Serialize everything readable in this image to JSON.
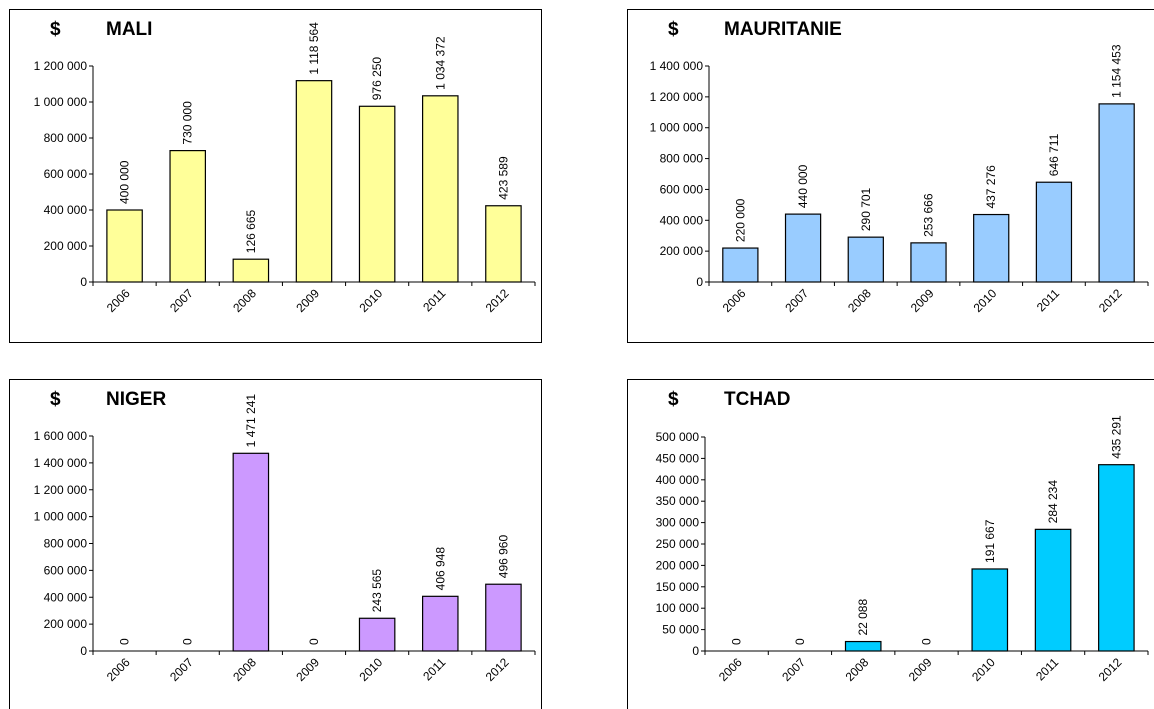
{
  "chart_data": [
    {
      "type": "bar",
      "title": "MALI",
      "unit": "$",
      "categories": [
        "2006",
        "2007",
        "2008",
        "2009",
        "2010",
        "2011",
        "2012"
      ],
      "values": [
        400000,
        730000,
        126665,
        1118564,
        976250,
        1034372,
        423589
      ],
      "value_labels": [
        "400 000",
        "730 000",
        "126 665",
        "1 118 564",
        "976 250",
        "1 034 372",
        "423 589"
      ],
      "ylim": [
        0,
        1200000
      ],
      "yticks": [
        0,
        200000,
        400000,
        600000,
        800000,
        1000000,
        1200000
      ],
      "ytick_labels": [
        "0",
        "200 000",
        "400 000",
        "600 000",
        "800 000",
        "1 000 000",
        "1 200 000"
      ],
      "bar_color": "#FFFF99",
      "grid": false,
      "legend": "none"
    },
    {
      "type": "bar",
      "title": "MAURITANIE",
      "unit": "$",
      "categories": [
        "2006",
        "2007",
        "2008",
        "2009",
        "2010",
        "2011",
        "2012"
      ],
      "values": [
        220000,
        440000,
        290701,
        253666,
        437276,
        646711,
        1154453
      ],
      "value_labels": [
        "220 000",
        "440 000",
        "290 701",
        "253 666",
        "437 276",
        "646 711",
        "1 154 453"
      ],
      "ylim": [
        0,
        1400000
      ],
      "yticks": [
        0,
        200000,
        400000,
        600000,
        800000,
        1000000,
        1200000,
        1400000
      ],
      "ytick_labels": [
        "0",
        "200 000",
        "400 000",
        "600 000",
        "800 000",
        "1 000 000",
        "1 200 000",
        "1 400 000"
      ],
      "bar_color": "#99CCFF",
      "grid": false,
      "legend": "none"
    },
    {
      "type": "bar",
      "title": "NIGER",
      "unit": "$",
      "categories": [
        "2006",
        "2007",
        "2008",
        "2009",
        "2010",
        "2011",
        "2012"
      ],
      "values": [
        0,
        0,
        1471241,
        0,
        243565,
        406948,
        496960
      ],
      "value_labels": [
        "0",
        "0",
        "1 471 241",
        "0",
        "243 565",
        "406 948",
        "496 960"
      ],
      "ylim": [
        0,
        1600000
      ],
      "yticks": [
        0,
        200000,
        400000,
        600000,
        800000,
        1000000,
        1200000,
        1400000,
        1600000
      ],
      "ytick_labels": [
        "0",
        "200 000",
        "400 000",
        "600 000",
        "800 000",
        "1 000 000",
        "1 200 000",
        "1 400 000",
        "1 600 000"
      ],
      "bar_color": "#CC99FF",
      "grid": false,
      "legend": "none"
    },
    {
      "type": "bar",
      "title": "TCHAD",
      "unit": "$",
      "categories": [
        "2006",
        "2007",
        "2008",
        "2009",
        "2010",
        "2011",
        "2012"
      ],
      "values": [
        0,
        0,
        22088,
        0,
        191667,
        284234,
        435291
      ],
      "value_labels": [
        "0",
        "0",
        "22 088",
        "0",
        "191 667",
        "284 234",
        "435 291"
      ],
      "ylim": [
        0,
        500000
      ],
      "yticks": [
        0,
        50000,
        100000,
        150000,
        200000,
        250000,
        300000,
        350000,
        400000,
        450000,
        500000
      ],
      "ytick_labels": [
        "0",
        "50 000",
        "100 000",
        "150 000",
        "200 000",
        "250 000",
        "300 000",
        "350 000",
        "400 000",
        "450 000",
        "500 000"
      ],
      "bar_color": "#00CCFF",
      "grid": false,
      "legend": "none"
    }
  ]
}
